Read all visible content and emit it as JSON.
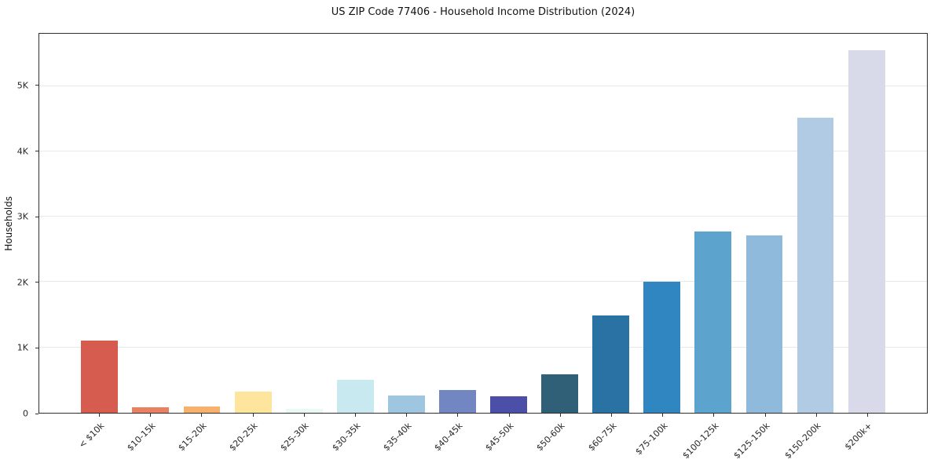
{
  "chart_data": {
    "type": "bar",
    "title": "US ZIP Code 77406 - Household Income Distribution (2024)",
    "xlabel": "",
    "ylabel": "Households",
    "ylim": [
      0,
      5800
    ],
    "grid": true,
    "legend": "none",
    "categories": [
      "< $10k",
      "$10-15k",
      "$15-20k",
      "$20-25k",
      "$25-30k",
      "$30-35k",
      "$35-40k",
      "$40-45k",
      "$45-50k",
      "$50-60k",
      "$60-75k",
      "$75-100k",
      "$100-125k",
      "$125-150k",
      "$150-200k",
      "$200k+"
    ],
    "values": [
      1100,
      80,
      100,
      330,
      55,
      500,
      270,
      350,
      250,
      590,
      1490,
      2000,
      2780,
      2720,
      4520,
      5550
    ],
    "bar_colors": [
      "#d65c50",
      "#e98160",
      "#f7b16d",
      "#fde59e",
      "#eaf9f4",
      "#c9e9f1",
      "#9ec6e0",
      "#7287c2",
      "#4c4fa7",
      "#2f6077",
      "#2a72a3",
      "#2f86c0",
      "#5ca4ce",
      "#8fbadb",
      "#b2cbe4",
      "#d9dae9"
    ],
    "yticks": {
      "values": [
        0,
        1000,
        2000,
        3000,
        4000,
        5000
      ],
      "labels": [
        "0",
        "1K",
        "2K",
        "3K",
        "4K",
        "5K"
      ]
    }
  },
  "colors": {
    "grid": "#e8e8e8",
    "spine": "#2e2e2e",
    "background": "#ffffff",
    "text": "#1a1a1a"
  }
}
